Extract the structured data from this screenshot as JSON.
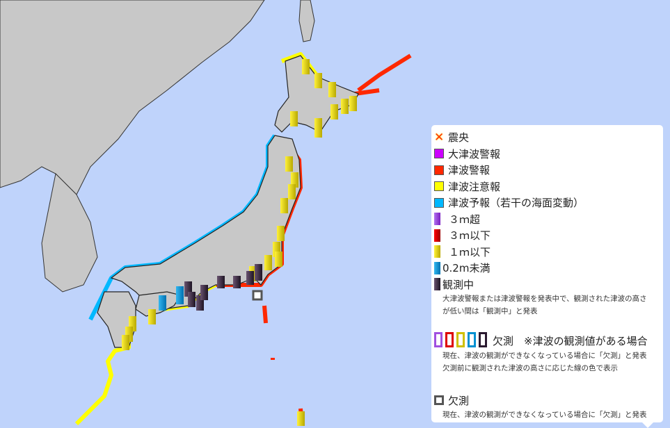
{
  "colors": {
    "sea": "#bfd3fb",
    "land": "#c8c8c8",
    "major_warning": "#cc00ff",
    "warning": "#ff2800",
    "advisory": "#ffff00",
    "forecast": "#00b8ff"
  },
  "legend": {
    "epicenter": "震央",
    "major_warning": "大津波警報",
    "warning": "津波警報",
    "advisory": "津波注意報",
    "forecast": "津波予報（若干の海面変動）",
    "over_3m": "３ｍ超",
    "under_3m": "３ｍ以下",
    "under_1m": "１ｍ以下",
    "under_02m": "0.2m未満",
    "observing": "観測中",
    "observing_note1": "大津波警報または津波警報を発表中で、観測された津波の高さ",
    "observing_note2": "が低い間は「観測中」と発表",
    "missing_with_value": "欠測　※津波の観測値がある場合",
    "missing_with_value_note1": "現在、津波の観測ができなくなっている場合に「欠測」と発表",
    "missing_with_value_note2": "欠測前に観測された津波の高さに応じた線の色で表示",
    "missing": "欠測",
    "missing_note": "現在、津波の観測ができなくなっている場合に「欠測」と発表"
  }
}
